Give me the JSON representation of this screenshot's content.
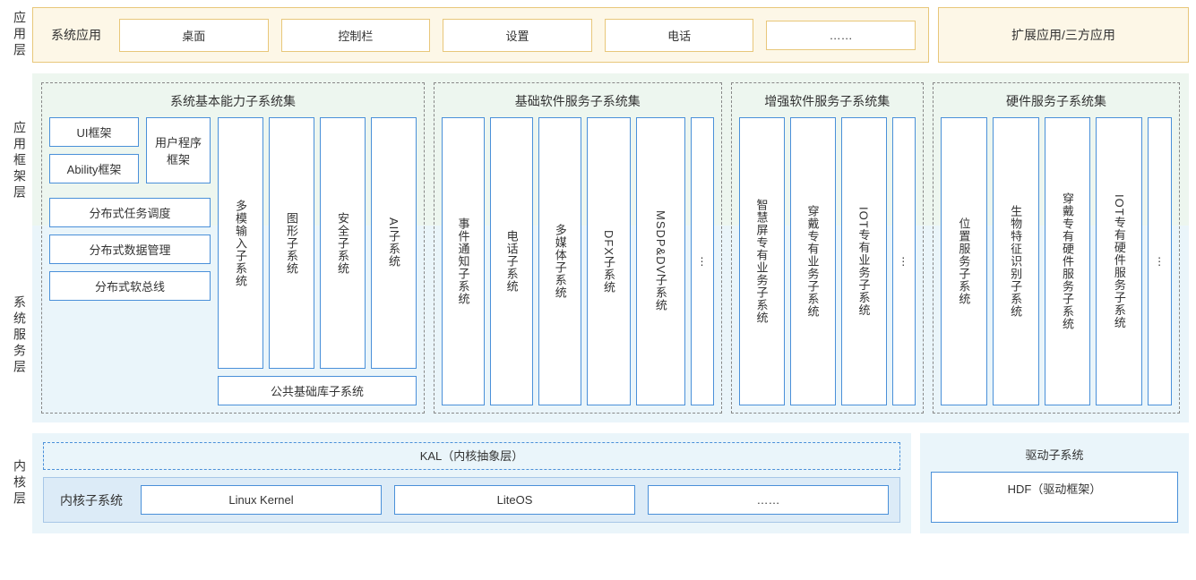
{
  "colors": {
    "app_border": "#e8c77a",
    "app_bg": "#fdf7e7",
    "box_border": "#4a90d9",
    "dashed_border": "#888888",
    "mid_top_bg": "#edf6ef",
    "mid_bottom_bg": "#eaf5fa",
    "kernel_inner_border": "#a7c7e7",
    "kernel_inner_bg": "#dcebf7"
  },
  "layout": {
    "mid_top_height": 170,
    "mid_total_height": 390
  },
  "layers": {
    "app": {
      "label": "应用层",
      "sys_app_label": "系统应用",
      "boxes": [
        "桌面",
        "控制栏",
        "设置",
        "电话",
        "……"
      ],
      "ext_label": "扩展应用/三方应用"
    },
    "framework_label": "应用框架层",
    "service_label": "系统服务层",
    "mid": {
      "group1": {
        "title": "系统基本能力子系统集",
        "left_top": [
          "UI框架",
          "Ability框架"
        ],
        "user_program": "用户程序框架",
        "vcols": [
          "多模输入子系统",
          "图形子系统",
          "安全子系统",
          "AI子系统"
        ],
        "dist": [
          "分布式任务调度",
          "分布式数据管理",
          "分布式软总线"
        ],
        "public_lib": "公共基础库子系统"
      },
      "group2": {
        "title": "基础软件服务子系统集",
        "vcols": [
          "事件通知子系统",
          "电话子系统",
          "多媒体子系统",
          "DFX子系统",
          "MSDP&DV子系统",
          "⋮"
        ]
      },
      "group3": {
        "title": "增强软件服务子系统集",
        "vcols": [
          "智慧屏专有业务子系统",
          "穿戴专有业务子系统",
          "IOT专有业务子系统",
          "⋮"
        ]
      },
      "group4": {
        "title": "硬件服务子系统集",
        "vcols": [
          "位置服务子系统",
          "生物特征识别子系统",
          "穿戴专有硬件服务子系统",
          "IOT专有硬件服务子系统",
          "⋮"
        ]
      }
    },
    "kernel": {
      "label": "内核层",
      "kal": "KAL（内核抽象层）",
      "kernel_sub_label": "内核子系统",
      "boxes": [
        "Linux Kernel",
        "LiteOS",
        "……"
      ],
      "driver_title": "驱动子系统",
      "driver_box": "HDF（驱动框架）"
    }
  }
}
